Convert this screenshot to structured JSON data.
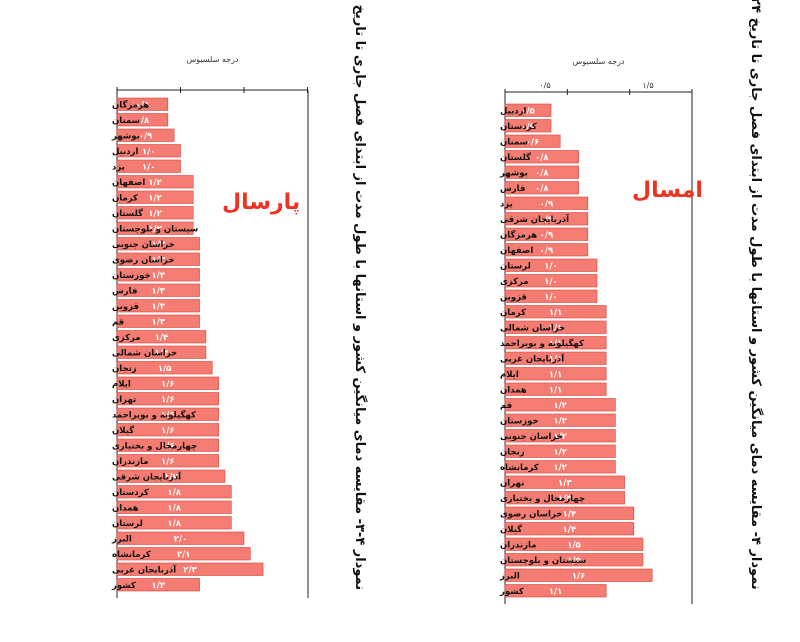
{
  "chart_data": [
    {
      "type": "bar",
      "orientation": "horizontal",
      "badge": "پارسال",
      "title": "نمودار ۴-۳- مقایسه دمای میانگین کشور و استانها با طول مدت از ابتدای فصل جاری تا تاریخ ۱۴۰۲/۵/۲۴",
      "xlabel": "درجه سلسیوس",
      "xlim": [
        0,
        3
      ],
      "grid": false,
      "categories": [
        "هرمزگان",
        "سمنان",
        "بوشهر",
        "اردبیل",
        "یزد",
        "اصفهان",
        "کرمان",
        "گلستان",
        "سیستان و بلوچستان",
        "خراسان جنوبی",
        "خراسان رضوی",
        "خوزستان",
        "فارس",
        "قزوین",
        "قم",
        "مرکزی",
        "خراسان شمالی",
        "زنجان",
        "ایلام",
        "تهران",
        "کهگیلویه و بویراحمد",
        "گیلان",
        "چهارمحال و بختیاری",
        "مازندران",
        "آذربایجان شرقی",
        "کردستان",
        "همدان",
        "لرستان",
        "البرز",
        "کرمانشاه",
        "آذربایجان غربی",
        "کشور"
      ],
      "values": [
        0.8,
        0.8,
        0.9,
        1.0,
        1.0,
        1.2,
        1.2,
        1.2,
        1.2,
        1.3,
        1.3,
        1.3,
        1.3,
        1.3,
        1.3,
        1.4,
        1.4,
        1.5,
        1.6,
        1.6,
        1.6,
        1.6,
        1.6,
        1.6,
        1.7,
        1.8,
        1.8,
        1.8,
        2.0,
        2.1,
        2.3,
        1.3
      ],
      "value_labels": [
        "۰/۸",
        "۰/۸",
        "۰/۹",
        "۱/۰",
        "۱/۰",
        "۱/۲",
        "۱/۲",
        "۱/۲",
        "۱/۲",
        "۱/۳",
        "۱/۳",
        "۱/۳",
        "۱/۳",
        "۱/۳",
        "۱/۳",
        "۱/۴",
        "۱/۴",
        "۱/۵",
        "۱/۶",
        "۱/۶",
        "۱/۶",
        "۱/۶",
        "۱/۶",
        "۱/۶",
        "۱/۷",
        "۱/۸",
        "۱/۸",
        "۱/۸",
        "۲/۰",
        "۲/۱",
        "۲/۳",
        "۱/۳"
      ]
    },
    {
      "type": "bar",
      "orientation": "horizontal",
      "badge": "امسال",
      "title": "نمودار ۴- مقایسه دمای میانگین کشور و استانها با طول مدت از ابتدای فصل جاری تا تاریخ ۱۴۰۵/۵/۲۴",
      "xlabel": "درجه سلسیوس",
      "xlim": [
        0,
        2
      ],
      "tick_labels": [
        "۰/۵",
        "۱/۵"
      ],
      "grid": false,
      "categories": [
        "اردبیل",
        "کردستان",
        "سمنان",
        "گلستان",
        "بوشهر",
        "فارس",
        "یزد",
        "آذربایجان شرقی",
        "هرمزگان",
        "اصفهان",
        "لرستان",
        "مرکزی",
        "قزوین",
        "کرمان",
        "خراسان شمالی",
        "کهگیلویه و بویراحمد",
        "آذربایجان غربی",
        "ایلام",
        "همدان",
        "قم",
        "خوزستان",
        "خراسان جنوبی",
        "زنجان",
        "کرمانشاه",
        "تهران",
        "چهارمحال و بختیاری",
        "خراسان رضوی",
        "گیلان",
        "مازندران",
        "سیستان و بلوچستان",
        "البرز",
        "کشور"
      ],
      "values": [
        0.5,
        0.5,
        0.6,
        0.8,
        0.8,
        0.8,
        0.9,
        0.9,
        0.9,
        0.9,
        1.0,
        1.0,
        1.0,
        1.1,
        1.1,
        1.1,
        1.1,
        1.1,
        1.1,
        1.2,
        1.2,
        1.2,
        1.2,
        1.2,
        1.3,
        1.3,
        1.4,
        1.4,
        1.5,
        1.5,
        1.6,
        1.1
      ],
      "value_labels": [
        "۰/۵",
        "۰/۵",
        "۰/۶",
        "۰/۸",
        "۰/۸",
        "۰/۸",
        "۰/۹",
        "۰/۹",
        "۰/۹",
        "۰/۹",
        "۱/۰",
        "۱/۰",
        "۱/۰",
        "۱/۱",
        "۱/۱",
        "۱/۱",
        "۱/۱",
        "۱/۱",
        "۱/۱",
        "۱/۲",
        "۱/۲",
        "۱/۲",
        "۱/۲",
        "۱/۲",
        "۱/۳",
        "۱/۳",
        "۱/۴",
        "۱/۴",
        "۱/۵",
        "۱/۵",
        "۱/۶",
        "۱/۱"
      ]
    }
  ],
  "colors": {
    "bar_fill": "#f47c72",
    "bar_stroke": "#d9443a",
    "badge": "#ee3322",
    "axis": "#222222"
  }
}
